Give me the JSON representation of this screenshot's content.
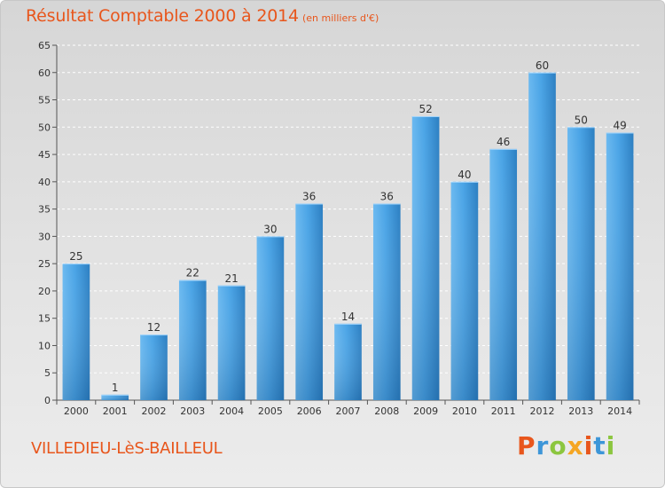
{
  "header": {
    "title": "Résultat Comptable 2000 à 2014",
    "unit_note": "(en milliers d'€)"
  },
  "footer": {
    "commune": "VILLEDIEU-LèS-BAILLEUL",
    "logo_text": "Proxiti"
  },
  "colors": {
    "title": "#e8561c",
    "bar": "#3d96d8",
    "bar_light": "#62b3ee",
    "bar_dark": "#2676b8"
  },
  "chart_data": {
    "type": "bar",
    "categories": [
      "2000",
      "2001",
      "2002",
      "2003",
      "2004",
      "2005",
      "2006",
      "2007",
      "2008",
      "2009",
      "2010",
      "2011",
      "2012",
      "2013",
      "2014"
    ],
    "values": [
      25,
      1,
      12,
      22,
      21,
      30,
      36,
      14,
      36,
      52,
      40,
      46,
      60,
      50,
      49
    ],
    "data_labels": [
      "25",
      "1",
      "12",
      "22",
      "21",
      "30",
      "36",
      "14",
      "36",
      "52",
      "40",
      "46",
      "60",
      "50",
      "49"
    ],
    "yticks": [
      "0",
      "5",
      "10",
      "15",
      "20",
      "25",
      "30",
      "35",
      "40",
      "45",
      "50",
      "55",
      "60",
      "65"
    ],
    "ylim": [
      0,
      65
    ],
    "grid": true
  }
}
